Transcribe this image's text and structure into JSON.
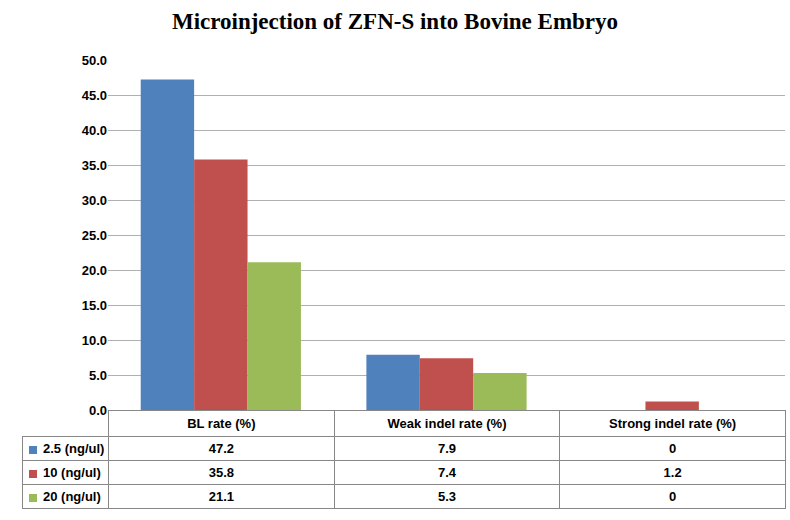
{
  "chart_data": {
    "type": "bar",
    "title": "Microinjection of ZFN-S into Bovine Embryo",
    "categories": [
      "BL rate (%)",
      "Weak indel rate (%)",
      "Strong indel rate (%)"
    ],
    "series": [
      {
        "name": "2.5 (ng/ul)",
        "color": "#4F81BD",
        "values": [
          47.2,
          7.9,
          0
        ]
      },
      {
        "name": "10 (ng/ul)",
        "color": "#C0504D",
        "values": [
          35.8,
          7.4,
          1.2
        ]
      },
      {
        "name": "20 (ng/ul)",
        "color": "#9BBB59",
        "values": [
          21.1,
          5.3,
          0
        ]
      }
    ],
    "ylim": [
      0,
      50
    ],
    "yticks": [
      {
        "value": 0,
        "label": "0.0"
      },
      {
        "value": 5,
        "label": "5.0"
      },
      {
        "value": 10,
        "label": "10.0"
      },
      {
        "value": 15,
        "label": "15.0"
      },
      {
        "value": 20,
        "label": "20.0"
      },
      {
        "value": 25,
        "label": "25.0"
      },
      {
        "value": 30,
        "label": "30.0"
      },
      {
        "value": 35,
        "label": "35.0"
      },
      {
        "value": 40,
        "label": "40.0"
      },
      {
        "value": 45,
        "label": "45.0"
      },
      {
        "value": 50,
        "label": "50.0"
      }
    ],
    "grid": true,
    "legend": "bottom"
  }
}
